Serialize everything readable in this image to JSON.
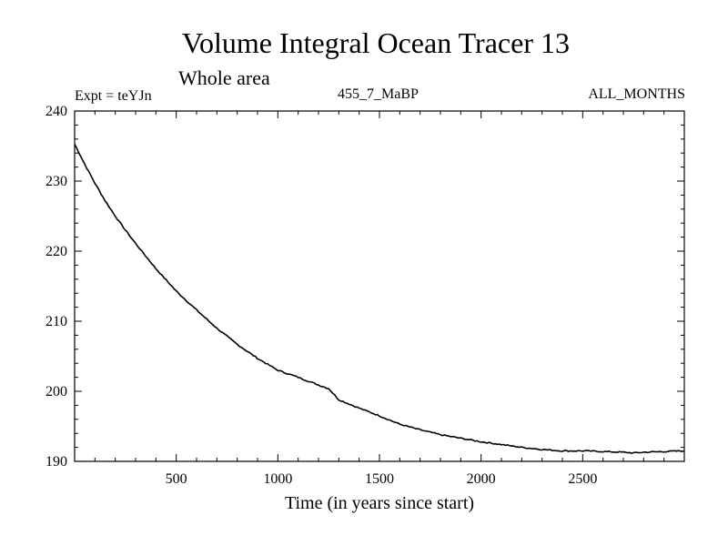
{
  "chart_data": {
    "type": "line",
    "title": "Volume Integral Ocean Tracer 13",
    "subtitle": "Whole area",
    "annotations": {
      "experiment": "Expt = teYJn",
      "run": "455_7_MaBP",
      "months": "ALL_MONTHS"
    },
    "xlabel": "Time (in years since start)",
    "ylabel": "",
    "xlim": [
      0,
      3000
    ],
    "ylim": [
      190,
      240
    ],
    "xticks": [
      500,
      1000,
      1500,
      2000,
      2500
    ],
    "yticks": [
      190,
      200,
      210,
      220,
      230,
      240
    ],
    "grid": false,
    "series": [
      {
        "color": "#000000",
        "x": [
          0,
          50,
          100,
          150,
          200,
          250,
          300,
          400,
          500,
          600,
          700,
          800,
          900,
          1000,
          1100,
          1200,
          1250,
          1300,
          1400,
          1500,
          1600,
          1700,
          1800,
          1900,
          2000,
          2100,
          2200,
          2300,
          2400,
          2500,
          2600,
          2700,
          2750,
          2800,
          2900,
          3000
        ],
        "values": [
          235.3,
          232.4,
          229.7,
          227.2,
          225.0,
          223.0,
          221.1,
          217.5,
          214.3,
          211.6,
          209.0,
          206.7,
          204.7,
          203.0,
          202.0,
          200.9,
          200.4,
          198.8,
          197.6,
          196.5,
          195.3,
          194.5,
          193.8,
          193.3,
          192.8,
          192.4,
          192.0,
          191.7,
          191.5,
          191.5,
          191.4,
          191.3,
          191.2,
          191.3,
          191.4,
          191.5
        ]
      }
    ]
  }
}
